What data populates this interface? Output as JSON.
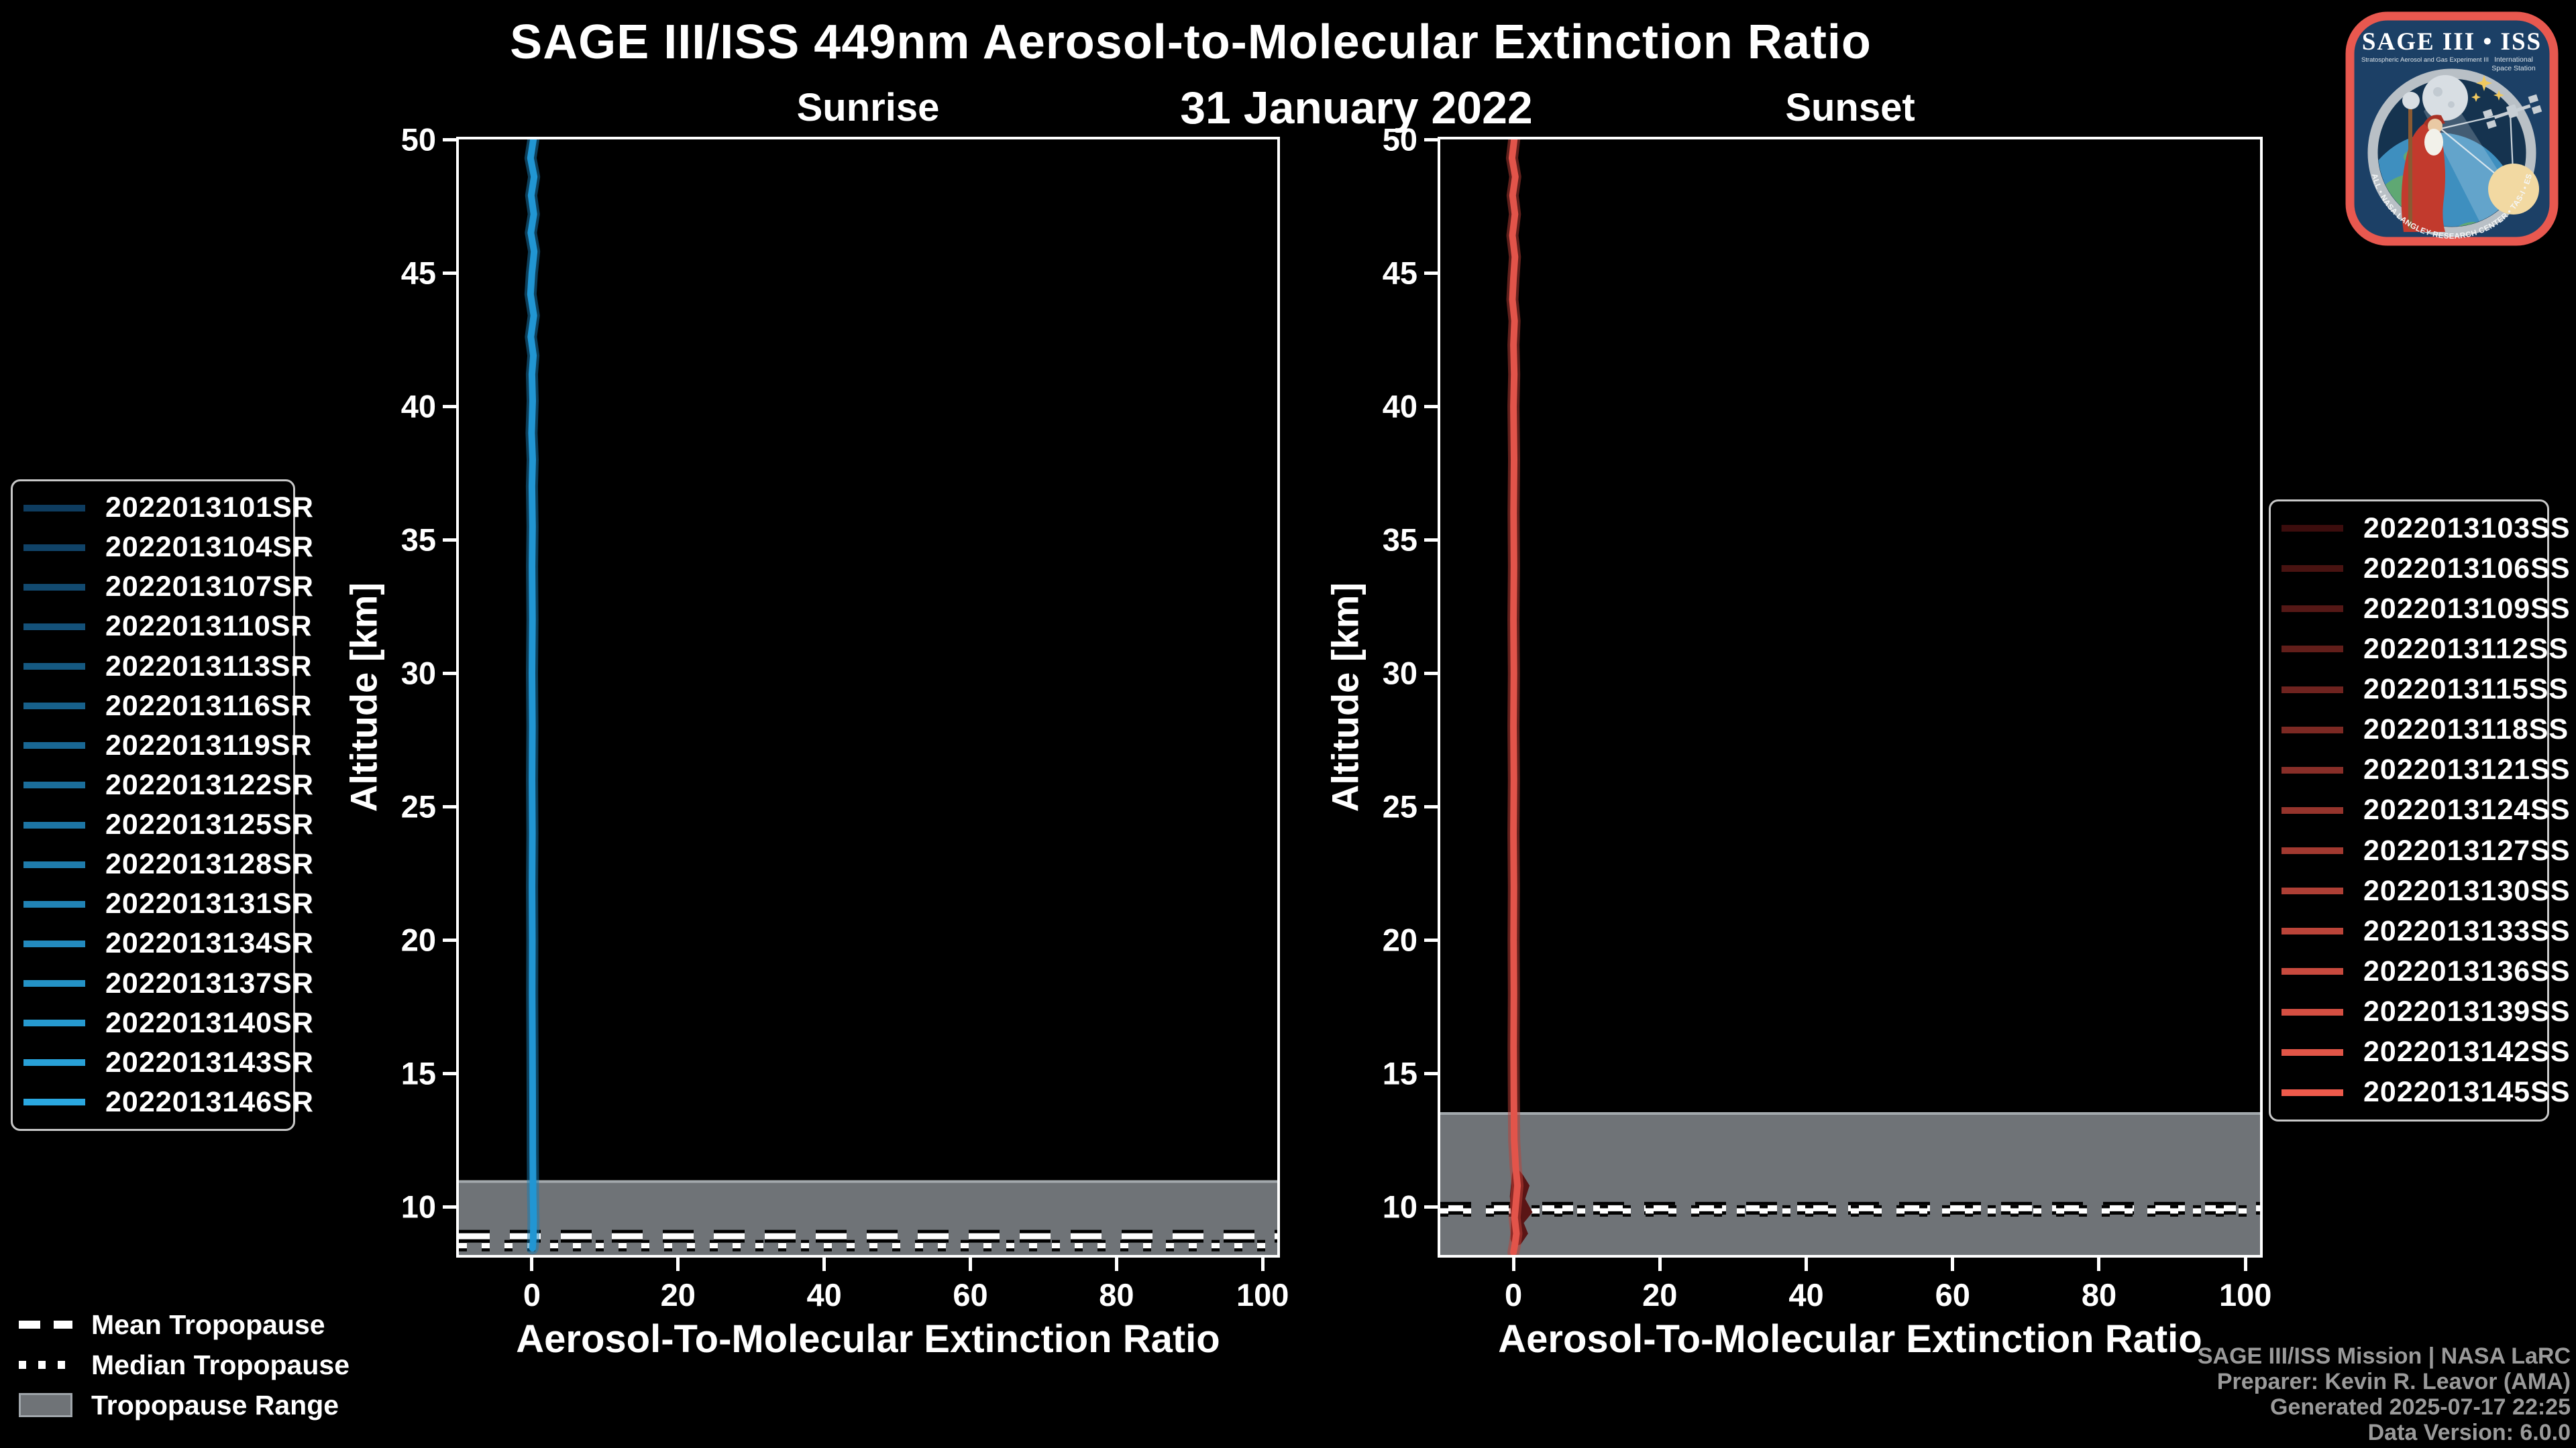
{
  "title": "SAGE III/ISS 449nm Aerosol-to-Molecular Extinction Ratio",
  "subtitle": "31 January 2022",
  "colors": {
    "background": "#000000",
    "axis": "#ffffff",
    "tropopause_band": "#6F7377",
    "tropopause_band_edge": "#A3A9AD",
    "sunrise_line": "#2196D3",
    "sunrise_halo": "#1A7DB4",
    "sunset_line": "#E2544A",
    "sunset_halo": "#C04038",
    "sunset_blob": "#5A1515",
    "footer_text": "#9a9a9a"
  },
  "tropopause_legend": {
    "mean": "Mean Tropopause",
    "median": "Median Tropopause",
    "range": "Tropopause Range"
  },
  "footer": {
    "line1": "SAGE III/ISS Mission | NASA LaRC",
    "line2": "Preparer: Kevin R. Leavor (AMA)",
    "line3": "Generated 2025-07-17 22:25",
    "line4": "Data Version: 6.0.0"
  },
  "logo": {
    "title": "SAGE III • ISS",
    "sub_left": "Stratospheric Aerosol and Gas Experiment III",
    "sub_right1": "International",
    "sub_right2": "Space Station",
    "arc": "BALL • NASA LANGLEY RESEARCH CENTER • TAS-I • ESA"
  },
  "chart_data": [
    {
      "type": "line",
      "panel_title": "Sunrise",
      "xlabel": "Aerosol-To-Molecular Extinction Ratio",
      "ylabel": "Altitude [km]",
      "xlim": [
        -10,
        102
      ],
      "ylim": [
        8.2,
        50
      ],
      "x_ticks": [
        0,
        20,
        40,
        60,
        80,
        100
      ],
      "y_ticks": [
        50,
        45,
        40,
        35,
        30,
        25,
        20,
        15,
        10
      ],
      "grid": false,
      "legend_position": "outside-left",
      "line_color": "#2196D3",
      "halo_color": "#1A7DB4",
      "series": [
        {
          "name": "2022013101SR",
          "color": "#0E3C5F"
        },
        {
          "name": "2022013104SR",
          "color": "#104368"
        },
        {
          "name": "2022013107SR",
          "color": "#124A70"
        },
        {
          "name": "2022013110SR",
          "color": "#145179"
        },
        {
          "name": "2022013113SR",
          "color": "#155981"
        },
        {
          "name": "2022013116SR",
          "color": "#17608A"
        },
        {
          "name": "2022013119SR",
          "color": "#196793"
        },
        {
          "name": "2022013122SR",
          "color": "#1B6E9B"
        },
        {
          "name": "2022013125SR",
          "color": "#1D75A4"
        },
        {
          "name": "2022013128SR",
          "color": "#1F7CAC"
        },
        {
          "name": "2022013131SR",
          "color": "#2183B5"
        },
        {
          "name": "2022013134SR",
          "color": "#238ABE"
        },
        {
          "name": "2022013137SR",
          "color": "#2492C6"
        },
        {
          "name": "2022013140SR",
          "color": "#2699CF"
        },
        {
          "name": "2022013143SR",
          "color": "#28A0D7"
        },
        {
          "name": "2022013146SR",
          "color": "#2AA7E0"
        }
      ],
      "profile_note": "all 16 sunrise profiles overlap as a near-vertical line at ratio ~0 from 50 km down to ~8.5 km",
      "profile": [
        [
          0.2,
          50
        ],
        [
          -0.2,
          49.3
        ],
        [
          0.3,
          48.6
        ],
        [
          -0.1,
          47.9
        ],
        [
          0.25,
          47.2
        ],
        [
          -0.15,
          46.5
        ],
        [
          0.3,
          45.8
        ],
        [
          0,
          45
        ],
        [
          -0.2,
          44.2
        ],
        [
          0.25,
          43.4
        ],
        [
          -0.15,
          42.6
        ],
        [
          0.2,
          41.9
        ],
        [
          0,
          41.2
        ],
        [
          0.1,
          40.2
        ],
        [
          -0.05,
          39
        ],
        [
          0.1,
          38
        ],
        [
          0,
          37
        ],
        [
          0.08,
          35.5
        ],
        [
          0.02,
          34
        ],
        [
          0.07,
          32
        ],
        [
          0.01,
          30
        ],
        [
          0.06,
          28
        ],
        [
          0.02,
          26
        ],
        [
          0.06,
          24
        ],
        [
          0.02,
          22
        ],
        [
          0.05,
          20
        ],
        [
          0.03,
          18
        ],
        [
          0.07,
          16
        ],
        [
          0.1,
          14
        ],
        [
          0.12,
          12
        ],
        [
          0.15,
          10.5
        ],
        [
          0.22,
          9.5
        ],
        [
          0.18,
          8.8
        ],
        [
          0.08,
          8.45
        ]
      ],
      "tropopause": {
        "mean_km": 8.9,
        "median_km": 8.55,
        "range_top_km": 10.95,
        "range_bottom_km": 8.2
      }
    },
    {
      "type": "line",
      "panel_title": "Sunset",
      "xlabel": "Aerosol-To-Molecular Extinction Ratio",
      "ylabel": "Altitude [km]",
      "xlim": [
        -10,
        102
      ],
      "ylim": [
        8.2,
        50
      ],
      "x_ticks": [
        0,
        20,
        40,
        60,
        80,
        100
      ],
      "y_ticks": [
        50,
        45,
        40,
        35,
        30,
        25,
        20,
        15,
        10
      ],
      "grid": false,
      "legend_position": "outside-right",
      "line_color": "#E2544A",
      "halo_color": "#C04038",
      "blob_color": "#5A1515",
      "series": [
        {
          "name": "2022013103SS",
          "color": "#3C0D0D"
        },
        {
          "name": "2022013106SS",
          "color": "#491311"
        },
        {
          "name": "2022013109SS",
          "color": "#551816"
        },
        {
          "name": "2022013112SS",
          "color": "#621E1A"
        },
        {
          "name": "2022013115SS",
          "color": "#6F231F"
        },
        {
          "name": "2022013118SS",
          "color": "#7C2923"
        },
        {
          "name": "2022013121SS",
          "color": "#882E28"
        },
        {
          "name": "2022013124SS",
          "color": "#95342C"
        },
        {
          "name": "2022013127SS",
          "color": "#A23930"
        },
        {
          "name": "2022013130SS",
          "color": "#AE3F35"
        },
        {
          "name": "2022013133SS",
          "color": "#BB4439"
        },
        {
          "name": "2022013136SS",
          "color": "#C84A3E"
        },
        {
          "name": "2022013139SS",
          "color": "#D54F42"
        },
        {
          "name": "2022013142SS",
          "color": "#E15547"
        },
        {
          "name": "2022013145SS",
          "color": "#EE5A4B"
        }
      ],
      "profile_note": "all 15 sunset profiles overlap as a near-vertical line at ratio ~0; dark spread blob near 9-11.5 km",
      "profile": [
        [
          0.1,
          50
        ],
        [
          -0.2,
          49.3
        ],
        [
          0.25,
          48.6
        ],
        [
          -0.12,
          47.9
        ],
        [
          0.2,
          47.2
        ],
        [
          -0.15,
          46.4
        ],
        [
          0.2,
          45.6
        ],
        [
          0,
          44.8
        ],
        [
          -0.15,
          44
        ],
        [
          0.15,
          43.2
        ],
        [
          0,
          42.3
        ],
        [
          0.1,
          41.2
        ],
        [
          0,
          40
        ],
        [
          0.08,
          38
        ],
        [
          0.02,
          36
        ],
        [
          0.06,
          34
        ],
        [
          0,
          32
        ],
        [
          0.05,
          30
        ],
        [
          0,
          28
        ],
        [
          0.05,
          26
        ],
        [
          0,
          24
        ],
        [
          0.05,
          22
        ],
        [
          0.02,
          20
        ],
        [
          0.05,
          18
        ],
        [
          0.02,
          16
        ],
        [
          0.05,
          14
        ],
        [
          0.1,
          12.5
        ],
        [
          0.3,
          11.5
        ],
        [
          0.55,
          10.8
        ],
        [
          0.35,
          10.2
        ],
        [
          0.15,
          9.6
        ],
        [
          0.4,
          9
        ],
        [
          0.2,
          8.6
        ],
        [
          0,
          8.3
        ]
      ],
      "blob": [
        [
          0.1,
          11.6
        ],
        [
          1.3,
          11.2
        ],
        [
          2.2,
          10.8
        ],
        [
          1.6,
          10.3
        ],
        [
          2.6,
          9.8
        ],
        [
          1.4,
          9.4
        ],
        [
          2.0,
          9.0
        ],
        [
          1.0,
          8.6
        ],
        [
          0,
          8.5
        ],
        [
          -0.4,
          8.8
        ],
        [
          -0.3,
          9.6
        ],
        [
          -0.5,
          10.4
        ],
        [
          -0.2,
          11.2
        ]
      ],
      "tropopause": {
        "mean_km": 9.95,
        "median_km": 9.85,
        "range_top_km": 13.5,
        "range_bottom_km": 8.2
      }
    }
  ]
}
